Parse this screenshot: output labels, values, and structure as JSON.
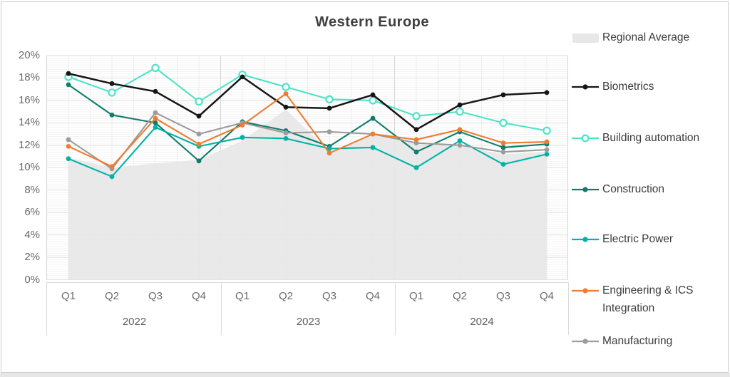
{
  "title": "Western Europe",
  "chart_data": {
    "type": "line",
    "title": "Western Europe",
    "x_quarters": [
      "Q1",
      "Q2",
      "Q3",
      "Q4",
      "Q1",
      "Q2",
      "Q3",
      "Q4",
      "Q1",
      "Q2",
      "Q3",
      "Q4"
    ],
    "x_years": [
      "2022",
      "2023",
      "2024"
    ],
    "y_ticks": [
      "0%",
      "2%",
      "4%",
      "6%",
      "8%",
      "10%",
      "12%",
      "14%",
      "16%",
      "18%",
      "20%"
    ],
    "ylim": [
      0,
      20
    ],
    "grid": true,
    "legend_position": "right",
    "series": [
      {
        "name": "Regional Average",
        "type": "area",
        "color": "#E7E7E7",
        "marker": "none",
        "values": [
          10.9,
          10.0,
          10.4,
          10.7,
          12.4,
          15.2,
          11.4,
          12.9,
          12.1,
          11.9,
          11.2,
          11.4
        ]
      },
      {
        "name": "Biometrics",
        "type": "line",
        "color": "#161616",
        "marker": "dot",
        "values": [
          18.4,
          17.5,
          16.8,
          14.6,
          18.1,
          15.4,
          15.3,
          16.5,
          13.4,
          15.6,
          16.5,
          16.7
        ]
      },
      {
        "name": "Building automation",
        "type": "line",
        "color": "#4DE3C9",
        "marker": "ring",
        "values": [
          18.1,
          16.7,
          18.9,
          15.9,
          18.3,
          17.2,
          16.1,
          16.0,
          14.6,
          15.0,
          14.0,
          13.3
        ]
      },
      {
        "name": "Construction",
        "type": "line",
        "color": "#0F7D6C",
        "marker": "dot",
        "values": [
          17.4,
          14.7,
          14.0,
          10.6,
          14.1,
          13.3,
          11.9,
          14.4,
          11.4,
          13.2,
          11.8,
          12.1
        ]
      },
      {
        "name": "Electric Power",
        "type": "line",
        "color": "#00B3A6",
        "marker": "dot",
        "values": [
          10.8,
          9.2,
          13.6,
          11.9,
          12.7,
          12.6,
          11.7,
          11.8,
          10.0,
          12.4,
          10.3,
          11.2
        ]
      },
      {
        "name": "Engineering & ICS Integration",
        "type": "line",
        "color": "#EE7D31",
        "marker": "dot",
        "values": [
          11.9,
          10.1,
          14.4,
          12.1,
          13.8,
          16.6,
          11.3,
          13.0,
          12.5,
          13.4,
          12.2,
          12.3
        ]
      },
      {
        "name": "Manufacturing",
        "type": "line",
        "color": "#9C9C9C",
        "marker": "dot",
        "values": [
          12.5,
          9.9,
          14.9,
          13.0,
          14.0,
          13.1,
          13.2,
          13.0,
          12.2,
          12.0,
          11.4,
          11.6
        ]
      }
    ]
  }
}
